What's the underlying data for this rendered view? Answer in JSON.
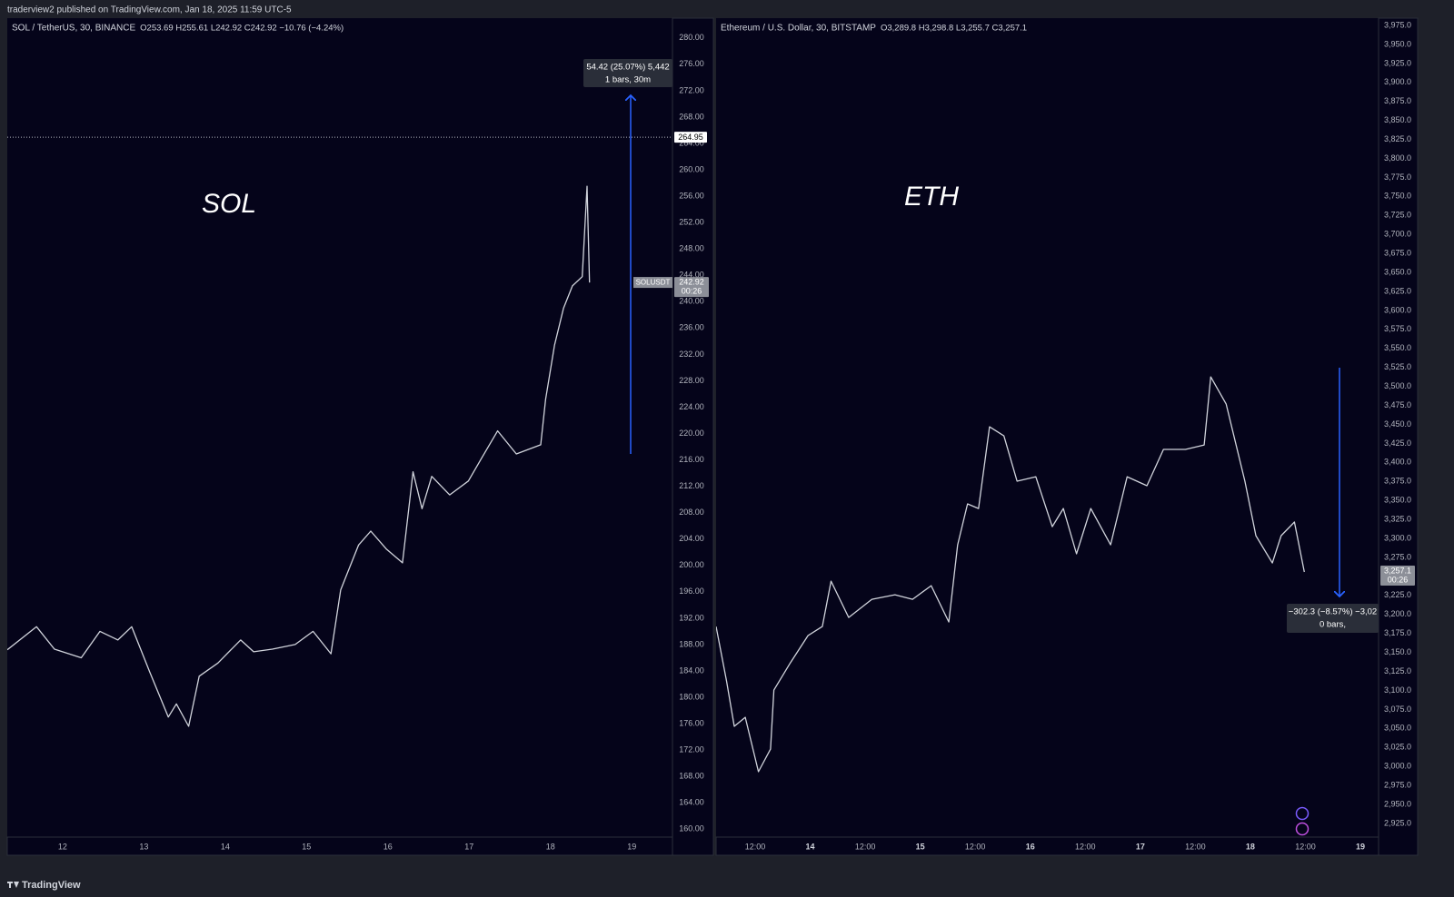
{
  "header": {
    "text": "traderview2 published on TradingView.com, Jan 18, 2025 11:59 UTC-5"
  },
  "footer": {
    "brand": "TradingView"
  },
  "chart_data": [
    {
      "type": "line",
      "title": "SOL / TetherUS, 30, BINANCE",
      "subtitle": "O253.69 H255.61 L242.92 C242.92 −10.76 (−4.24%)",
      "annotations": [
        "SOL"
      ],
      "color": "#d1d4dc",
      "x": [
        11.32,
        11.68,
        11.9,
        12.23,
        12.46,
        12.68,
        12.85,
        13.07,
        13.3,
        13.4,
        13.55,
        13.68,
        13.91,
        14.19,
        14.35,
        14.58,
        14.86,
        15.08,
        15.3,
        15.42,
        15.64,
        15.79,
        15.98,
        16.18,
        16.31,
        16.42,
        16.54,
        16.76,
        16.99,
        17.15,
        17.35,
        17.58,
        17.88,
        17.94,
        18.05,
        18.16,
        18.27,
        18.39,
        18.45,
        18.48
      ],
      "values": [
        187.2,
        190.7,
        187.3,
        186.0,
        190.0,
        188.7,
        190.7,
        183.9,
        177.0,
        179.0,
        175.6,
        183.2,
        185.2,
        188.7,
        186.9,
        187.3,
        188.0,
        190.0,
        186.6,
        196.3,
        203.1,
        205.2,
        202.5,
        200.4,
        214.2,
        208.6,
        213.5,
        210.7,
        212.8,
        216.2,
        220.4,
        216.9,
        218.3,
        225.2,
        233.4,
        239.0,
        242.4,
        243.8,
        257.5,
        242.9
      ],
      "xlim": [
        11.32,
        19.5
      ],
      "xticks": [
        12,
        13,
        14,
        15,
        16,
        17,
        18,
        19
      ],
      "ylim": [
        158.8,
        283
      ],
      "yticks": [
        {
          "value": 160,
          "label": "160.00"
        },
        {
          "value": 164,
          "label": "164.00"
        },
        {
          "value": 168,
          "label": "168.00"
        },
        {
          "value": 172,
          "label": "172.00"
        },
        {
          "value": 176,
          "label": "176.00"
        },
        {
          "value": 180,
          "label": "180.00"
        },
        {
          "value": 184,
          "label": "184.00"
        },
        {
          "value": 188,
          "label": "188.00"
        },
        {
          "value": 192,
          "label": "192.00"
        },
        {
          "value": 196,
          "label": "196.00"
        },
        {
          "value": 200,
          "label": "200.00"
        },
        {
          "value": 204,
          "label": "204.00"
        },
        {
          "value": 208,
          "label": "208.00"
        },
        {
          "value": 212,
          "label": "212.00"
        },
        {
          "value": 216,
          "label": "216.00"
        },
        {
          "value": 220,
          "label": "220.00"
        },
        {
          "value": 224,
          "label": "224.00"
        },
        {
          "value": 228,
          "label": "228.00"
        },
        {
          "value": 232,
          "label": "232.00"
        },
        {
          "value": 236,
          "label": "236.00"
        },
        {
          "value": 240,
          "label": "240.00"
        },
        {
          "value": 244,
          "label": "244.00"
        },
        {
          "value": 248,
          "label": "248.00"
        },
        {
          "value": 252,
          "label": "252.00"
        },
        {
          "value": 256,
          "label": "256.00"
        },
        {
          "value": 260,
          "label": "260.00"
        },
        {
          "value": 264,
          "label": "264.00"
        },
        {
          "value": 268,
          "label": "268.00"
        },
        {
          "value": 272,
          "label": "272.00"
        },
        {
          "value": 276,
          "label": "276.00"
        },
        {
          "value": 280,
          "label": "280.00"
        }
      ],
      "grid": false,
      "price_line": 264.95,
      "last_price": 242.92,
      "symbol_tag": "SOLUSDT",
      "countdown": "00:26",
      "measure": {
        "label": "54.42 (25.07%) 5,442",
        "sublabel": "1 bars, 30m"
      }
    },
    {
      "type": "line",
      "title": "Ethereum / U.S. Dollar, 30, BITSTAMP",
      "subtitle": "O3,289.8 H3,298.8 L3,255.7 C3,257.1",
      "annotations": [
        "ETH"
      ],
      "color": "#d1d4dc",
      "x": [
        13.145,
        13.24,
        13.31,
        13.41,
        13.53,
        13.64,
        13.67,
        13.82,
        13.98,
        14.11,
        14.19,
        14.35,
        14.56,
        14.77,
        14.93,
        15.1,
        15.26,
        15.34,
        15.43,
        15.53,
        15.63,
        15.76,
        15.88,
        16.05,
        16.2,
        16.3,
        16.42,
        16.55,
        16.73,
        16.88,
        17.06,
        17.21,
        17.41,
        17.58,
        17.64,
        17.78,
        17.95,
        18.05,
        18.2,
        18.28,
        18.4,
        18.49
      ],
      "values": [
        3184.1,
        3112.4,
        3052.8,
        3064.6,
        2993.0,
        3022.8,
        3100.4,
        3136.3,
        3172.1,
        3184.1,
        3243.8,
        3196.0,
        3219.9,
        3225.9,
        3219.9,
        3237.8,
        3190.0,
        3291.6,
        3345.4,
        3339.4,
        3446.9,
        3434.9,
        3375.3,
        3381.2,
        3315.5,
        3339.4,
        3279.7,
        3339.4,
        3291.6,
        3381.2,
        3369.3,
        3417.1,
        3417.1,
        3423.0,
        3512.6,
        3476.8,
        3375.3,
        3303.6,
        3267.7,
        3303.6,
        3321.5,
        3255.8
      ],
      "xlim": [
        13.145,
        19.165
      ],
      "xticks": [
        {
          "value": 13.5,
          "label": "12:00"
        },
        14,
        {
          "value": 14.5,
          "label": "12:00"
        },
        15,
        {
          "value": 15.5,
          "label": "12:00"
        },
        16,
        {
          "value": 16.5,
          "label": "12:00"
        },
        17,
        {
          "value": 17.5,
          "label": "12:00"
        },
        18,
        {
          "value": 18.5,
          "label": "12:00"
        },
        19
      ],
      "ylim": [
        2907,
        3984.6
      ],
      "yticks": [
        {
          "value": 2925,
          "label": "2,925.0"
        },
        {
          "value": 2950,
          "label": "2,950.0"
        },
        {
          "value": 2975,
          "label": "2,975.0"
        },
        {
          "value": 3000,
          "label": "3,000.0"
        },
        {
          "value": 3025,
          "label": "3,025.0"
        },
        {
          "value": 3050,
          "label": "3,050.0"
        },
        {
          "value": 3075,
          "label": "3,075.0"
        },
        {
          "value": 3100,
          "label": "3,100.0"
        },
        {
          "value": 3125,
          "label": "3,125.0"
        },
        {
          "value": 3150,
          "label": "3,150.0"
        },
        {
          "value": 3175,
          "label": "3,175.0"
        },
        {
          "value": 3200,
          "label": "3,200.0"
        },
        {
          "value": 3225,
          "label": "3,225.0"
        },
        {
          "value": 3250,
          "label": "3,250.0"
        },
        {
          "value": 3275,
          "label": "3,275.0"
        },
        {
          "value": 3300,
          "label": "3,300.0"
        },
        {
          "value": 3325,
          "label": "3,325.0"
        },
        {
          "value": 3350,
          "label": "3,350.0"
        },
        {
          "value": 3375,
          "label": "3,375.0"
        },
        {
          "value": 3400,
          "label": "3,400.0"
        },
        {
          "value": 3425,
          "label": "3,425.0"
        },
        {
          "value": 3450,
          "label": "3,450.0"
        },
        {
          "value": 3475,
          "label": "3,475.0"
        },
        {
          "value": 3500,
          "label": "3,500.0"
        },
        {
          "value": 3525,
          "label": "3,525.0"
        },
        {
          "value": 3550,
          "label": "3,550.0"
        },
        {
          "value": 3575,
          "label": "3,575.0"
        },
        {
          "value": 3600,
          "label": "3,600.0"
        },
        {
          "value": 3625,
          "label": "3,625.0"
        },
        {
          "value": 3650,
          "label": "3,650.0"
        },
        {
          "value": 3675,
          "label": "3,675.0"
        },
        {
          "value": 3700,
          "label": "3,700.0"
        },
        {
          "value": 3725,
          "label": "3,725.0"
        },
        {
          "value": 3750,
          "label": "3,750.0"
        },
        {
          "value": 3775,
          "label": "3,775.0"
        },
        {
          "value": 3800,
          "label": "3,800.0"
        },
        {
          "value": 3825,
          "label": "3,825.0"
        },
        {
          "value": 3850,
          "label": "3,850.0"
        },
        {
          "value": 3875,
          "label": "3,875.0"
        },
        {
          "value": 3900,
          "label": "3,900.0"
        },
        {
          "value": 3925,
          "label": "3,925.0"
        },
        {
          "value": 3950,
          "label": "3,950.0"
        },
        {
          "value": 3975,
          "label": "3,975.0"
        }
      ],
      "grid": false,
      "last_price": {
        "value": 3257.1,
        "label": "3,257.1"
      },
      "countdown": "00:26",
      "measure": {
        "label": "−302.3 (−8.57%) −3,02",
        "sublabel": "0 bars,"
      }
    }
  ]
}
